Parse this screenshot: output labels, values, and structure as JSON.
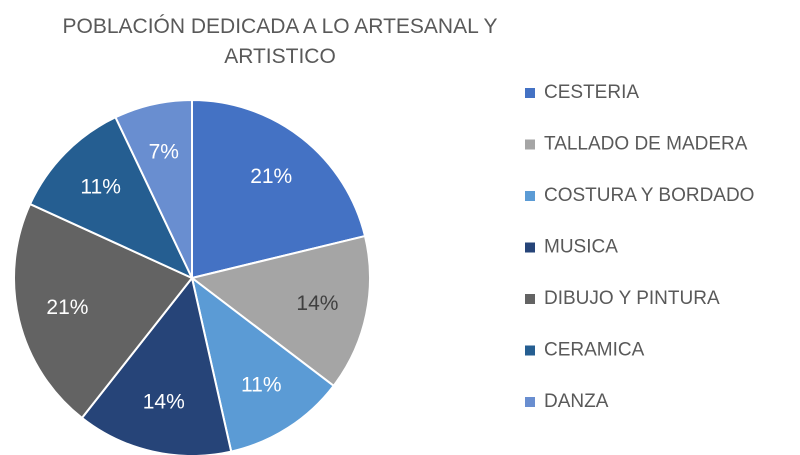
{
  "chart_data": {
    "type": "pie",
    "title": "POBLACIÓN DEDICADA A LO ARTESANAL Y ARTISTICO",
    "categories": [
      "CESTERIA",
      "TALLADO DE MADERA",
      "COSTURA Y BORDADO",
      "MUSICA",
      "DIBUJO Y PINTURA",
      "CERAMICA",
      "DANZA"
    ],
    "values": [
      21,
      14,
      11,
      14,
      21,
      11,
      7
    ],
    "value_labels": [
      "21%",
      "14%",
      "11%",
      "14%",
      "21%",
      "11%",
      "7%"
    ],
    "colors": [
      "#4472c4",
      "#a5a5a5",
      "#5b9bd5",
      "#264478",
      "#636363",
      "#255e91",
      "#698ed0"
    ],
    "legend": "right"
  }
}
